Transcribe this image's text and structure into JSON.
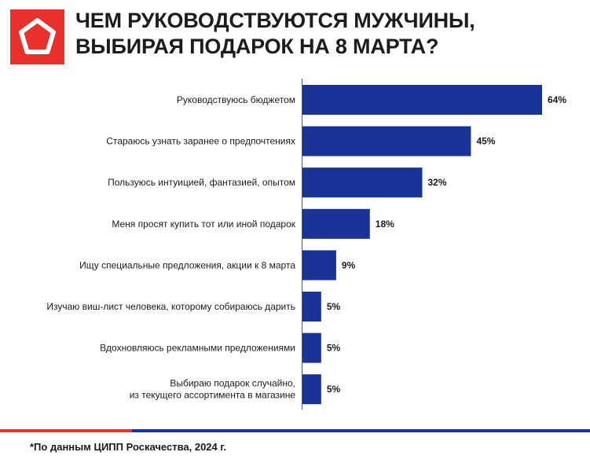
{
  "header": {
    "title_line1": "ЧЕМ РУКОВОДСТВУЮТСЯ МУЖЧИНЫ,",
    "title_line2": "ВЫБИРАЯ ПОДАРОК НА 8 МАРТА?",
    "logo": "pentagon-logo-icon"
  },
  "colors": {
    "accent_red": "#e8312a",
    "bar_blue": "#1a3399"
  },
  "chart_data": {
    "type": "bar",
    "orientation": "horizontal",
    "categories": [
      [
        "Руководствуюсь бюджетом"
      ],
      [
        "Стараюсь узнать заранее о предпочтениях"
      ],
      [
        "Пользуюсь интуицией, фантазией, опытом"
      ],
      [
        "Меня просят купить тот или иной подарок"
      ],
      [
        "Ищу специальные предложения, акции к 8 марта"
      ],
      [
        "Изучаю виш-лист человека, которому собираюсь дарить"
      ],
      [
        "Вдохновляюсь рекламными предложениями"
      ],
      [
        "Выбираю подарок случайно,",
        "из текущего ассортимента в магазине"
      ]
    ],
    "values": [
      64,
      45,
      32,
      18,
      9,
      5,
      5,
      5
    ],
    "value_labels": [
      "64%",
      "45%",
      "32%",
      "18%",
      "9%",
      "5%",
      "5%",
      "5%"
    ],
    "unit": "%",
    "xlim": [
      0,
      64
    ],
    "grid": false,
    "legend": "none"
  },
  "footer": {
    "note": "*По данным ЦИПП Роскачества, 2024 г."
  }
}
